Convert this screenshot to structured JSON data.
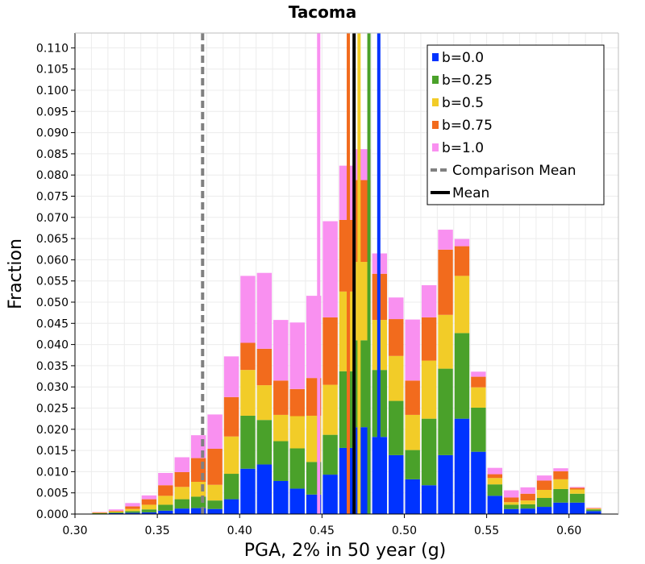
{
  "chart_data": {
    "type": "bar",
    "stacked": true,
    "title": "Tacoma",
    "xlabel": "PGA, 2% in 50 year (g)",
    "ylabel": "Fraction",
    "xlim": [
      0.3,
      0.63
    ],
    "ylim": [
      0.0,
      0.1135
    ],
    "xticks": [
      "0.30",
      "0.35",
      "0.40",
      "0.45",
      "0.50",
      "0.55",
      "0.60"
    ],
    "yticks": [
      "0.000",
      "0.005",
      "0.010",
      "0.015",
      "0.020",
      "0.025",
      "0.030",
      "0.035",
      "0.040",
      "0.045",
      "0.050",
      "0.055",
      "0.060",
      "0.065",
      "0.070",
      "0.075",
      "0.080",
      "0.085",
      "0.090",
      "0.095",
      "0.100",
      "0.105",
      "0.110"
    ],
    "bin_width": 0.01,
    "bin_starts": [
      0.31,
      0.32,
      0.33,
      0.34,
      0.35,
      0.36,
      0.37,
      0.38,
      0.39,
      0.4,
      0.41,
      0.42,
      0.43,
      0.44,
      0.45,
      0.46,
      0.47,
      0.48,
      0.49,
      0.5,
      0.51,
      0.52,
      0.53,
      0.54,
      0.55,
      0.56,
      0.57,
      0.58,
      0.59,
      0.6,
      0.61
    ],
    "series": [
      {
        "name": "b=0.0",
        "color": "#0033ff",
        "values": [
          0.0001,
          0.0002,
          0.0003,
          0.0004,
          0.0008,
          0.0013,
          0.0014,
          0.0012,
          0.0035,
          0.0107,
          0.0117,
          0.0078,
          0.006,
          0.0046,
          0.0093,
          0.0156,
          0.0205,
          0.0182,
          0.0139,
          0.0082,
          0.0068,
          0.0139,
          0.0225,
          0.0147,
          0.0043,
          0.0012,
          0.0013,
          0.0017,
          0.0027,
          0.0027,
          0.0007
        ]
      },
      {
        "name": "b=0.25",
        "color": "#4aa12a",
        "values": [
          0.0001,
          0.0002,
          0.0004,
          0.0007,
          0.0014,
          0.0022,
          0.0027,
          0.002,
          0.006,
          0.0125,
          0.0105,
          0.0094,
          0.0095,
          0.0077,
          0.0094,
          0.0181,
          0.0205,
          0.0158,
          0.0128,
          0.0069,
          0.0157,
          0.0204,
          0.0202,
          0.0104,
          0.0027,
          0.001,
          0.001,
          0.0021,
          0.0032,
          0.0021,
          0.0004
        ]
      },
      {
        "name": "b=0.5",
        "color": "#f2cc28",
        "values": [
          0.0001,
          0.0002,
          0.0005,
          0.0011,
          0.0021,
          0.0029,
          0.0035,
          0.0037,
          0.0088,
          0.0108,
          0.0082,
          0.0062,
          0.0076,
          0.0109,
          0.0118,
          0.0188,
          0.0185,
          0.0118,
          0.0106,
          0.0083,
          0.0137,
          0.0127,
          0.0135,
          0.0048,
          0.0015,
          0.0006,
          0.0009,
          0.0019,
          0.0023,
          0.001,
          0.0002
        ]
      },
      {
        "name": "b=0.75",
        "color": "#f26b1d",
        "values": [
          0.0001,
          0.0002,
          0.0006,
          0.0013,
          0.0025,
          0.0035,
          0.0056,
          0.0085,
          0.0093,
          0.0064,
          0.0086,
          0.0081,
          0.0064,
          0.0089,
          0.0159,
          0.0169,
          0.0193,
          0.0109,
          0.0087,
          0.0081,
          0.0102,
          0.0154,
          0.007,
          0.0025,
          0.0009,
          0.0011,
          0.0016,
          0.0022,
          0.0019,
          0.0004,
          0.0001
        ]
      },
      {
        "name": "b=1.0",
        "color": "#f990f0",
        "values": [
          0.0001,
          0.0003,
          0.0008,
          0.0009,
          0.0029,
          0.0035,
          0.0054,
          0.0081,
          0.0096,
          0.0158,
          0.0179,
          0.0143,
          0.0157,
          0.0194,
          0.0227,
          0.0128,
          0.0073,
          0.0048,
          0.0051,
          0.0144,
          0.0076,
          0.0047,
          0.0017,
          0.0012,
          0.0015,
          0.0017,
          0.0015,
          0.0012,
          0.0007,
          0.0002,
          0.0001
        ]
      }
    ],
    "vertical_lines": [
      {
        "name": "b=0.0 mean",
        "x": 0.4845,
        "color": "#0033ff",
        "style": "solid"
      },
      {
        "name": "b=0.25 mean",
        "x": 0.4785,
        "color": "#4aa12a",
        "style": "solid"
      },
      {
        "name": "b=0.5 mean",
        "x": 0.4725,
        "color": "#f2cc28",
        "style": "solid"
      },
      {
        "name": "b=0.75 mean",
        "x": 0.466,
        "color": "#f26b1d",
        "style": "solid"
      },
      {
        "name": "b=1.0 mean",
        "x": 0.448,
        "color": "#f990f0",
        "style": "solid"
      },
      {
        "name": "Comparison Mean",
        "x": 0.3775,
        "color": "#808080",
        "style": "dashed"
      },
      {
        "name": "Mean",
        "x": 0.4695,
        "color": "#000000",
        "style": "solid"
      }
    ],
    "legend": {
      "position": "top-right",
      "entries": [
        {
          "label": "b=0.0",
          "color": "#0033ff",
          "kind": "box"
        },
        {
          "label": "b=0.25",
          "color": "#4aa12a",
          "kind": "box"
        },
        {
          "label": "b=0.5",
          "color": "#f2cc28",
          "kind": "box"
        },
        {
          "label": "b=0.75",
          "color": "#f26b1d",
          "kind": "box"
        },
        {
          "label": "b=1.0",
          "color": "#f990f0",
          "kind": "box"
        },
        {
          "label": "Comparison Mean",
          "color": "#808080",
          "kind": "dashed-line"
        },
        {
          "label": "Mean",
          "color": "#000000",
          "kind": "line"
        }
      ]
    },
    "grid": true
  }
}
